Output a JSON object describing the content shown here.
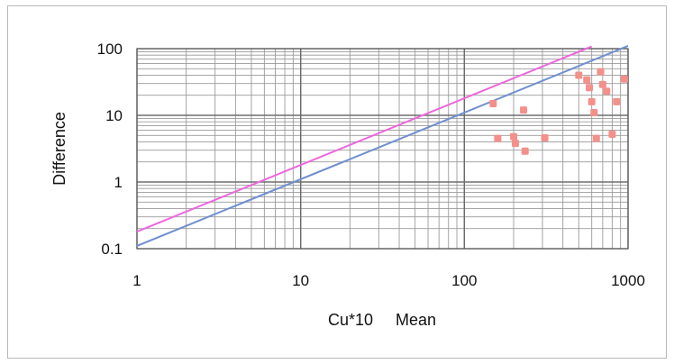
{
  "chart_data": {
    "type": "scatter",
    "title": "",
    "xlabel": "Cu*10     Mean",
    "ylabel": "Difference",
    "x_scale": "log",
    "y_scale": "log",
    "xlim": [
      1,
      1000
    ],
    "ylim": [
      0.1,
      100
    ],
    "x_tick_labels": [
      "1",
      "10",
      "100",
      "1000"
    ],
    "y_tick_labels": [
      "0.1",
      "1",
      "10",
      "100"
    ],
    "grid": true,
    "legend": "none",
    "series": [
      {
        "type": "scatter",
        "color": "#f4908a",
        "points": [
          {
            "x": 150,
            "y": 15
          },
          {
            "x": 160,
            "y": 4.5
          },
          {
            "x": 200,
            "y": 4.8
          },
          {
            "x": 205,
            "y": 3.8
          },
          {
            "x": 230,
            "y": 12
          },
          {
            "x": 235,
            "y": 2.9
          },
          {
            "x": 310,
            "y": 4.6
          },
          {
            "x": 500,
            "y": 40
          },
          {
            "x": 560,
            "y": 34
          },
          {
            "x": 580,
            "y": 26
          },
          {
            "x": 600,
            "y": 16
          },
          {
            "x": 620,
            "y": 11
          },
          {
            "x": 640,
            "y": 4.5
          },
          {
            "x": 680,
            "y": 45
          },
          {
            "x": 700,
            "y": 29
          },
          {
            "x": 740,
            "y": 23
          },
          {
            "x": 800,
            "y": 5.2
          },
          {
            "x": 850,
            "y": 16
          },
          {
            "x": 950,
            "y": 35
          }
        ]
      },
      {
        "type": "line",
        "color": "#6f8fd0",
        "points": [
          {
            "x": 1,
            "y": 0.11
          },
          {
            "x": 1000,
            "y": 110
          }
        ]
      },
      {
        "type": "line",
        "color": "#ee66dd",
        "points": [
          {
            "x": 1,
            "y": 0.18
          },
          {
            "x": 600,
            "y": 108
          }
        ]
      }
    ]
  }
}
